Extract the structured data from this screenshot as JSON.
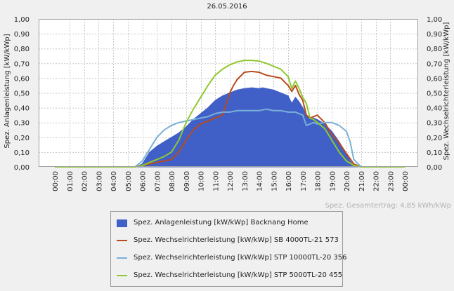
{
  "chart_data": {
    "type": "line",
    "title": "26.05.2016",
    "ylabel_left": "Spez. Anlagenleistung [kW/kWp]",
    "ylabel_right": "Spez. Wechselrichterleistung [kW/kWp]",
    "ylim": [
      0,
      1
    ],
    "yticks": [
      "0,00",
      "0,10",
      "0,20",
      "0,30",
      "0,40",
      "0,50",
      "0,60",
      "0,70",
      "0,80",
      "0,90",
      "1,00"
    ],
    "xticks": [
      "00:00",
      "01:00",
      "02:00",
      "03:00",
      "04:00",
      "05:00",
      "06:00",
      "07:00",
      "08:00",
      "09:00",
      "10:00",
      "11:00",
      "12:00",
      "13:00",
      "14:00",
      "15:00",
      "16:00",
      "17:00",
      "18:00",
      "19:00",
      "20:00",
      "21:00",
      "22:00",
      "23:00",
      "00:00"
    ],
    "xlim": [
      0,
      24
    ],
    "grid": true,
    "total_text": "Spez. Gesamtertrag: 4,85 kWh/kWp",
    "series": [
      {
        "name": "Spez. Anlagenleistung [kW/kWp] Backnang Home",
        "kind": "area",
        "color": "#4060c8",
        "x": [
          0,
          5.5,
          6.0,
          6.5,
          7.0,
          7.5,
          8.0,
          8.5,
          9.0,
          9.5,
          10.0,
          10.5,
          11.0,
          11.5,
          12.0,
          12.5,
          13.0,
          13.5,
          14.0,
          14.25,
          14.5,
          15.0,
          15.5,
          16.0,
          16.25,
          16.5,
          16.75,
          17.0,
          17.25,
          17.5,
          17.75,
          18.0,
          18.5,
          19.0,
          19.5,
          20.0,
          20.25,
          20.5,
          21.0,
          24
        ],
        "y": [
          0,
          0,
          0.02,
          0.1,
          0.14,
          0.17,
          0.2,
          0.23,
          0.27,
          0.32,
          0.36,
          0.4,
          0.45,
          0.48,
          0.5,
          0.52,
          0.53,
          0.535,
          0.53,
          0.535,
          0.53,
          0.52,
          0.5,
          0.48,
          0.43,
          0.47,
          0.44,
          0.4,
          0.35,
          0.33,
          0.33,
          0.32,
          0.29,
          0.24,
          0.17,
          0.09,
          0.04,
          0.01,
          0,
          0
        ]
      },
      {
        "name": "Spez. Wechselrichterleistung [kW/kWp] SB 4000TL-21 573",
        "kind": "line",
        "color": "#b84a1e",
        "x": [
          0,
          5.5,
          6.0,
          6.5,
          7.0,
          7.5,
          8.0,
          8.5,
          9.0,
          9.5,
          10.0,
          10.5,
          11.0,
          11.5,
          12.0,
          12.25,
          12.5,
          13.0,
          13.5,
          14.0,
          14.5,
          15.0,
          15.5,
          16.0,
          16.25,
          16.5,
          16.75,
          17.0,
          17.25,
          17.5,
          17.75,
          18.0,
          18.5,
          19.0,
          19.5,
          20.0,
          20.5,
          21.0,
          24
        ],
        "y": [
          0,
          0,
          0.01,
          0.02,
          0.03,
          0.04,
          0.05,
          0.1,
          0.18,
          0.25,
          0.29,
          0.31,
          0.33,
          0.35,
          0.5,
          0.55,
          0.59,
          0.64,
          0.645,
          0.64,
          0.62,
          0.61,
          0.6,
          0.55,
          0.51,
          0.55,
          0.49,
          0.45,
          0.35,
          0.33,
          0.34,
          0.35,
          0.3,
          0.22,
          0.16,
          0.09,
          0.02,
          0,
          0
        ]
      },
      {
        "name": "Spez. Wechselrichterleistung [kW/kWp] STP 10000TL-20 356",
        "kind": "line",
        "color": "#7ab0d8",
        "x": [
          0,
          5.5,
          6.0,
          6.5,
          7.0,
          7.5,
          8.0,
          8.5,
          9.0,
          9.5,
          10.0,
          10.5,
          11.0,
          11.5,
          12.0,
          12.5,
          13.0,
          13.5,
          14.0,
          14.5,
          15.0,
          15.5,
          16.0,
          16.5,
          17.0,
          17.25,
          17.5,
          17.75,
          18.0,
          18.5,
          19.0,
          19.5,
          20.0,
          20.25,
          20.5,
          21.0,
          24
        ],
        "y": [
          0,
          0,
          0.04,
          0.12,
          0.2,
          0.25,
          0.28,
          0.3,
          0.31,
          0.32,
          0.33,
          0.34,
          0.36,
          0.37,
          0.37,
          0.38,
          0.38,
          0.38,
          0.38,
          0.39,
          0.38,
          0.38,
          0.37,
          0.37,
          0.35,
          0.28,
          0.29,
          0.3,
          0.29,
          0.3,
          0.3,
          0.28,
          0.24,
          0.17,
          0.05,
          0,
          0
        ]
      },
      {
        "name": "Spez. Wechselrichterleistung [kW/kWp] STP 5000TL-20 455",
        "kind": "line",
        "color": "#90c830",
        "x": [
          0,
          5.5,
          6.0,
          6.5,
          7.0,
          7.5,
          8.0,
          8.5,
          9.0,
          9.5,
          10.0,
          10.5,
          11.0,
          11.5,
          12.0,
          12.5,
          13.0,
          13.5,
          14.0,
          14.5,
          15.0,
          15.5,
          16.0,
          16.25,
          16.5,
          16.75,
          17.0,
          17.25,
          17.5,
          17.75,
          18.0,
          18.5,
          19.0,
          19.5,
          20.0,
          20.5,
          21.0,
          24
        ],
        "y": [
          0,
          0,
          0.01,
          0.03,
          0.05,
          0.07,
          0.1,
          0.18,
          0.3,
          0.39,
          0.47,
          0.55,
          0.62,
          0.66,
          0.69,
          0.71,
          0.72,
          0.72,
          0.715,
          0.7,
          0.68,
          0.66,
          0.61,
          0.53,
          0.58,
          0.53,
          0.47,
          0.43,
          0.33,
          0.32,
          0.3,
          0.26,
          0.18,
          0.1,
          0.04,
          0.01,
          0,
          0
        ]
      }
    ]
  }
}
